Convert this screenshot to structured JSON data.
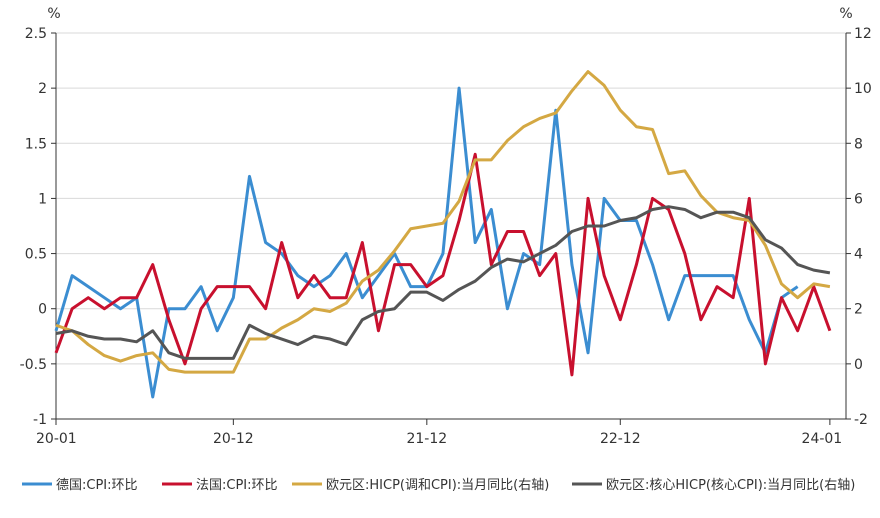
{
  "chart_data": {
    "type": "line",
    "left_unit": "%",
    "right_unit": "%",
    "x": [
      "20-01",
      "20-02",
      "20-03",
      "20-04",
      "20-05",
      "20-06",
      "20-07",
      "20-08",
      "20-09",
      "20-10",
      "20-11",
      "20-12",
      "21-01",
      "21-02",
      "21-03",
      "21-04",
      "21-05",
      "21-06",
      "21-07",
      "21-08",
      "21-09",
      "21-10",
      "21-11",
      "21-12",
      "22-01",
      "22-02",
      "22-03",
      "22-04",
      "22-05",
      "22-06",
      "22-07",
      "22-08",
      "22-09",
      "22-10",
      "22-11",
      "22-12",
      "23-01",
      "23-02",
      "23-03",
      "23-04",
      "23-05",
      "23-06",
      "23-07",
      "23-08",
      "23-09",
      "23-10",
      "23-11",
      "23-12",
      "24-01",
      "24-02"
    ],
    "x_tick_labels": [
      "20-01",
      "20-12",
      "21-12",
      "22-12",
      "24-01"
    ],
    "x_tick_values": [
      "20-01",
      "20-12",
      "21-12",
      "22-12",
      "24-01"
    ],
    "left_axis": {
      "ylim": [
        -1,
        2.5
      ],
      "ticks": [
        "-1",
        "-0.5",
        "0",
        "0.5",
        "1",
        "1.5",
        "2",
        "2.5"
      ]
    },
    "right_axis": {
      "ylim": [
        -2,
        12
      ],
      "ticks": [
        "-2",
        "0",
        "2",
        "4",
        "6",
        "8",
        "10",
        "12"
      ]
    },
    "grid": "horizontal",
    "legend_position": "bottom",
    "series": [
      {
        "name": "德国:CPI:环比",
        "axis": "left",
        "color": "#3b8dd1",
        "values": [
          -0.2,
          0.3,
          0.2,
          0.1,
          0.0,
          0.1,
          -0.8,
          0.0,
          0.0,
          0.2,
          -0.2,
          0.1,
          1.2,
          0.6,
          0.5,
          0.3,
          0.2,
          0.3,
          0.5,
          0.1,
          0.3,
          0.5,
          0.2,
          0.2,
          0.5,
          2.0,
          0.6,
          0.9,
          0.0,
          0.5,
          0.4,
          1.8,
          0.4,
          -0.4,
          1.0,
          0.8,
          0.8,
          0.4,
          -0.1,
          0.3,
          0.3,
          0.3,
          0.3,
          -0.1,
          -0.4,
          0.1,
          0.2,
          null,
          null,
          null
        ]
      },
      {
        "name": "法国:CPI:环比",
        "axis": "left",
        "color": "#c8102e",
        "values": [
          -0.4,
          0.0,
          0.1,
          0.0,
          0.1,
          0.1,
          0.4,
          -0.1,
          -0.5,
          0.0,
          0.2,
          0.2,
          0.2,
          0.0,
          0.6,
          0.1,
          0.3,
          0.1,
          0.1,
          0.6,
          -0.2,
          0.4,
          0.4,
          0.2,
          0.3,
          0.8,
          1.4,
          0.4,
          0.7,
          0.7,
          0.3,
          0.5,
          -0.6,
          1.0,
          0.3,
          -0.1,
          0.4,
          1.0,
          0.9,
          0.5,
          -0.1,
          0.2,
          0.1,
          1.0,
          -0.5,
          0.1,
          -0.2,
          0.2,
          -0.2,
          null
        ]
      },
      {
        "name": "欧元区:HICP(调和CPI):当月同比(右轴)",
        "axis": "right",
        "color": "#d4a843",
        "values": [
          1.4,
          1.2,
          0.7,
          0.3,
          0.1,
          0.3,
          0.4,
          -0.2,
          -0.3,
          -0.3,
          -0.3,
          -0.3,
          0.9,
          0.9,
          1.3,
          1.6,
          2.0,
          1.9,
          2.2,
          3.0,
          3.4,
          4.1,
          4.9,
          5.0,
          5.1,
          5.9,
          7.4,
          7.4,
          8.1,
          8.6,
          8.9,
          9.1,
          9.9,
          10.6,
          10.1,
          9.2,
          8.6,
          8.5,
          6.9,
          7.0,
          6.1,
          5.5,
          5.3,
          5.2,
          4.3,
          2.9,
          2.4,
          2.9,
          2.8,
          null
        ]
      },
      {
        "name": "欧元区:核心HICP(核心CPI):当月同比(右轴)",
        "axis": "right",
        "color": "#555555",
        "values": [
          1.1,
          1.2,
          1.0,
          0.9,
          0.9,
          0.8,
          1.2,
          0.4,
          0.2,
          0.2,
          0.2,
          0.2,
          1.4,
          1.1,
          0.9,
          0.7,
          1.0,
          0.9,
          0.7,
          1.6,
          1.9,
          2.0,
          2.6,
          2.6,
          2.3,
          2.7,
          3.0,
          3.5,
          3.8,
          3.7,
          4.0,
          4.3,
          4.8,
          5.0,
          5.0,
          5.2,
          5.3,
          5.6,
          5.7,
          5.6,
          5.3,
          5.5,
          5.5,
          5.3,
          4.5,
          4.2,
          3.6,
          3.4,
          3.3,
          null
        ]
      }
    ]
  }
}
